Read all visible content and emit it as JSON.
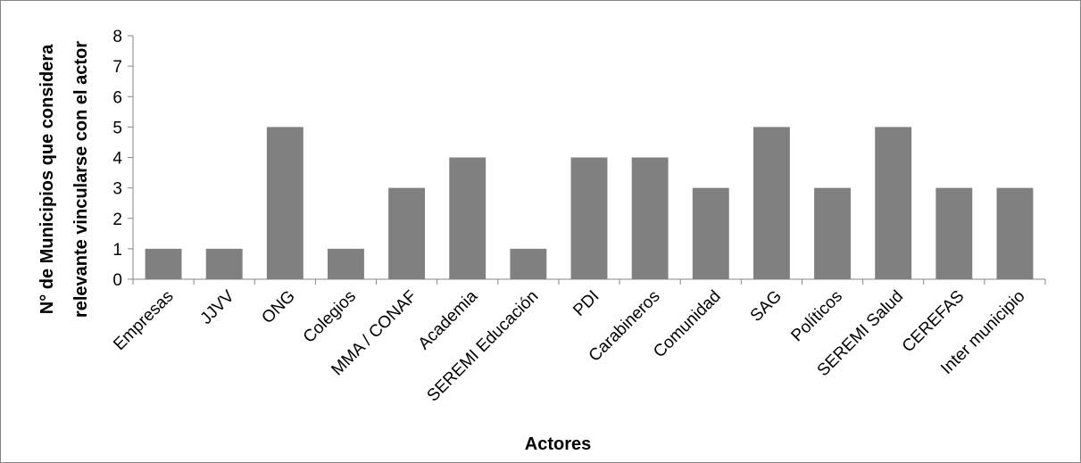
{
  "chart_data": {
    "type": "bar",
    "title": "",
    "xlabel": "Actores",
    "ylabel_lines": [
      "N° de Municipios que considera",
      "relevante vincularse con el actor"
    ],
    "categories": [
      "Empresas",
      "JJVV",
      "ONG",
      "Colegios",
      "MMA / CONAF",
      "Academia",
      "SEREMI Educación",
      "PDI",
      "Carabineros",
      "Comunidad",
      "SAG",
      "Políticos",
      "SEREMI Salud",
      "CEREFAS",
      "Inter municipio"
    ],
    "values": [
      1,
      1,
      5,
      1,
      3,
      4,
      1,
      4,
      4,
      3,
      5,
      3,
      5,
      3,
      3
    ],
    "ylim": [
      0,
      8
    ],
    "yticks": [
      0,
      1,
      2,
      3,
      4,
      5,
      6,
      7,
      8
    ],
    "grid": false,
    "legend": "none",
    "bar_color": "#808080"
  }
}
